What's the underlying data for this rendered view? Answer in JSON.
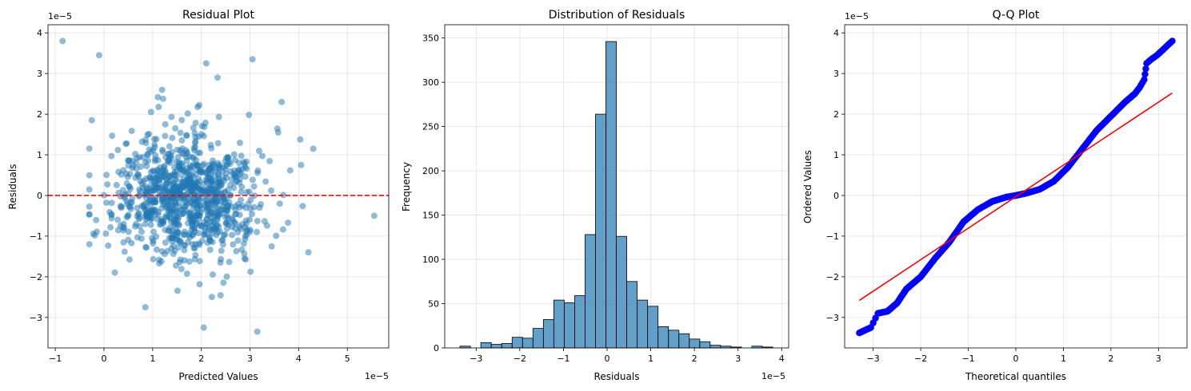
{
  "chart_data": [
    {
      "type": "scatter",
      "title": "Residual Plot",
      "xlabel": "Predicted Values",
      "ylabel": "Residuals",
      "x_offset_label": "1e−5",
      "y_offset_label": "1e−5",
      "xlim": [
        -1.15,
        5.85
      ],
      "ylim": [
        -3.75,
        4.2
      ],
      "xticks": [
        -1,
        0,
        1,
        2,
        3,
        4,
        5
      ],
      "xtick_labels": [
        "−1",
        "0",
        "1",
        "2",
        "3",
        "4",
        "5"
      ],
      "yticks": [
        -3,
        -2,
        -1,
        0,
        1,
        2,
        3,
        4
      ],
      "ytick_labels": [
        "−3",
        "−2",
        "−1",
        "0",
        "1",
        "2",
        "3",
        "4"
      ],
      "grid": true,
      "point_color": "#1f77b4",
      "reference_line": {
        "y": 0,
        "color": "#ff0000",
        "style": "dashed"
      },
      "generated_points": {
        "count": 1000,
        "center_x": 1.7,
        "spread_x": 0.75,
        "spread_y": 0.95
      },
      "highlight_points": [
        {
          "x": -0.85,
          "y": 3.8
        },
        {
          "x": -0.1,
          "y": 3.45
        },
        {
          "x": 2.1,
          "y": 3.25
        },
        {
          "x": 3.05,
          "y": 3.35
        },
        {
          "x": 3.65,
          "y": 2.3
        },
        {
          "x": 5.55,
          "y": -0.5
        },
        {
          "x": 4.3,
          "y": 1.15
        },
        {
          "x": 4.2,
          "y": -1.4
        },
        {
          "x": 2.05,
          "y": -3.25
        },
        {
          "x": 3.15,
          "y": -3.35
        },
        {
          "x": 0.85,
          "y": -2.75
        },
        {
          "x": 4.05,
          "y": 0.75
        },
        {
          "x": -0.25,
          "y": 1.85
        },
        {
          "x": -0.3,
          "y": -1.2
        }
      ]
    },
    {
      "type": "bar",
      "title": "Distribution of Residuals",
      "xlabel": "Residuals",
      "ylabel": "Frequency",
      "x_offset_label": "1e−5",
      "xlim": [
        -3.72,
        4.16
      ],
      "ylim": [
        0,
        365
      ],
      "xticks": [
        -3,
        -2,
        -1,
        0,
        1,
        2,
        3,
        4
      ],
      "xtick_labels": [
        "−3",
        "−2",
        "−1",
        "0",
        "1",
        "2",
        "3",
        "4"
      ],
      "yticks": [
        0,
        50,
        100,
        150,
        200,
        250,
        300,
        350
      ],
      "ytick_labels": [
        "0",
        "50",
        "100",
        "150",
        "200",
        "250",
        "300",
        "350"
      ],
      "grid": true,
      "bar_color": "#1f77b4",
      "bin_start": -3.37,
      "bin_width": 0.2388,
      "values": [
        2,
        0,
        6,
        4,
        5,
        12,
        11,
        22,
        32,
        54,
        51,
        59,
        128,
        264,
        346,
        126,
        75,
        54,
        47,
        24,
        20,
        16,
        10,
        7,
        3,
        2,
        1,
        0,
        2,
        1
      ]
    },
    {
      "type": "scatter",
      "title": "Q-Q Plot",
      "xlabel": "Theoretical quantiles",
      "ylabel": "Ordered Values",
      "y_offset_label": "1e−5",
      "xlim": [
        -3.6,
        3.6
      ],
      "ylim": [
        -3.75,
        4.2
      ],
      "xticks": [
        -3,
        -2,
        -1,
        0,
        1,
        2,
        3
      ],
      "xtick_labels": [
        "−3",
        "−2",
        "−1",
        "0",
        "1",
        "2",
        "3"
      ],
      "yticks": [
        -3,
        -2,
        -1,
        0,
        1,
        2,
        3,
        4
      ],
      "ytick_labels": [
        "−3",
        "−2",
        "−1",
        "0",
        "1",
        "2",
        "3",
        "4"
      ],
      "grid": true,
      "point_color": "#0000ff",
      "fit_line": {
        "x": [
          -3.29,
          3.29
        ],
        "y": [
          -2.58,
          2.52
        ],
        "color": "#ff0000"
      },
      "curve_points": [
        {
          "x": -3.29,
          "y": -3.38
        },
        {
          "x": -3.05,
          "y": -3.25
        },
        {
          "x": -2.9,
          "y": -2.9
        },
        {
          "x": -2.7,
          "y": -2.85
        },
        {
          "x": -2.5,
          "y": -2.65
        },
        {
          "x": -2.3,
          "y": -2.3
        },
        {
          "x": -2.0,
          "y": -2.0
        },
        {
          "x": -1.7,
          "y": -1.55
        },
        {
          "x": -1.4,
          "y": -1.15
        },
        {
          "x": -1.1,
          "y": -0.65
        },
        {
          "x": -0.8,
          "y": -0.35
        },
        {
          "x": -0.5,
          "y": -0.15
        },
        {
          "x": -0.2,
          "y": -0.04
        },
        {
          "x": 0.0,
          "y": 0.0
        },
        {
          "x": 0.2,
          "y": 0.05
        },
        {
          "x": 0.5,
          "y": 0.15
        },
        {
          "x": 0.8,
          "y": 0.35
        },
        {
          "x": 1.1,
          "y": 0.7
        },
        {
          "x": 1.4,
          "y": 1.15
        },
        {
          "x": 1.7,
          "y": 1.6
        },
        {
          "x": 2.0,
          "y": 1.95
        },
        {
          "x": 2.3,
          "y": 2.3
        },
        {
          "x": 2.5,
          "y": 2.5
        },
        {
          "x": 2.6,
          "y": 2.65
        },
        {
          "x": 2.7,
          "y": 2.85
        },
        {
          "x": 2.75,
          "y": 3.25
        },
        {
          "x": 2.85,
          "y": 3.35
        },
        {
          "x": 2.97,
          "y": 3.45
        },
        {
          "x": 3.29,
          "y": 3.8
        }
      ]
    }
  ]
}
